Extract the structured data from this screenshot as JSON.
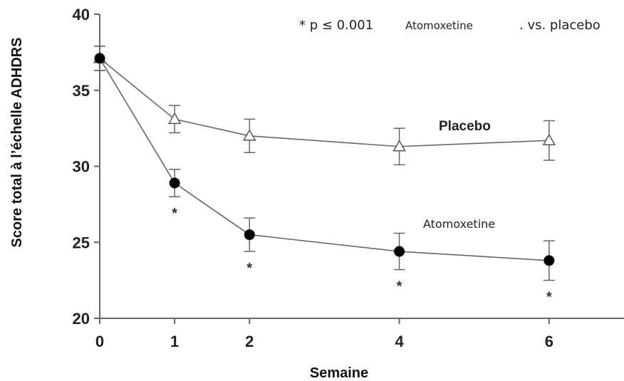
{
  "chart_data": {
    "type": "line",
    "xlabel": "Semaine",
    "ylabel": "Score total à l’échelle ADHDRS",
    "x": [
      0,
      1,
      2,
      4,
      6
    ],
    "xticks": [
      "0",
      "1",
      "2",
      "4",
      "6"
    ],
    "xlim": [
      0,
      7
    ],
    "ylim": [
      20,
      40
    ],
    "yticks": [
      "20",
      "25",
      "30",
      "35",
      "40"
    ],
    "ytick_values": [
      20,
      25,
      30,
      35,
      40
    ],
    "grid": false,
    "series": [
      {
        "name": "Placebo",
        "marker": "open-triangle",
        "color": "#555555",
        "values": [
          37.1,
          33.1,
          32.0,
          31.3,
          31.7
        ],
        "error": [
          0.8,
          0.9,
          1.1,
          1.2,
          1.3
        ]
      },
      {
        "name": "Atomoxetine",
        "marker": "filled-circle",
        "color": "#000000",
        "values": [
          37.1,
          28.9,
          25.5,
          24.4,
          23.8
        ],
        "error": [
          0.8,
          0.9,
          1.1,
          1.2,
          1.3
        ],
        "significance_marks": [
          "",
          "*",
          "*",
          "*",
          "*"
        ]
      }
    ],
    "annotation": {
      "pvalue": "* p ≤ 0.001",
      "middle": "Atomoxetine",
      "suffix": ". vs. placebo"
    }
  }
}
